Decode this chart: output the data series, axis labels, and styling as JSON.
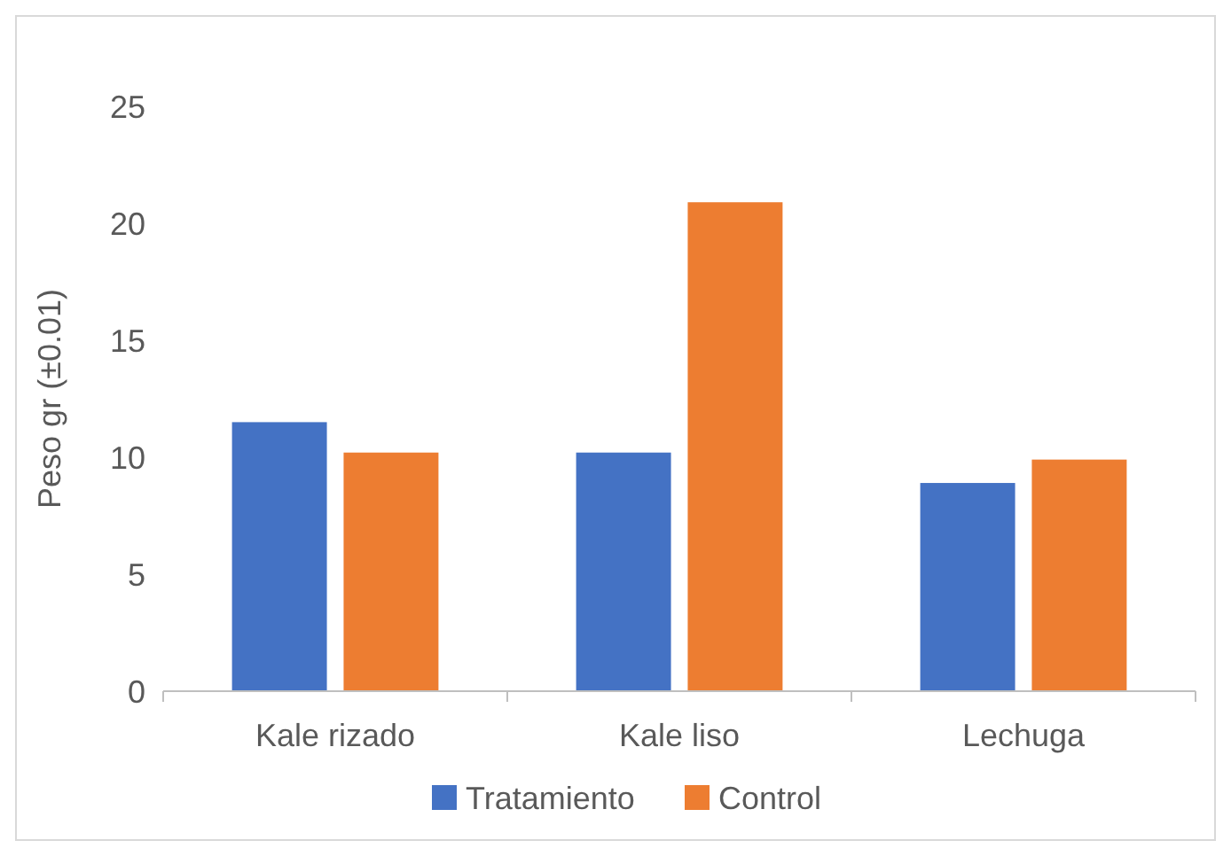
{
  "chart_data": {
    "type": "bar",
    "categories": [
      "Kale rizado",
      "Kale liso",
      "Lechuga"
    ],
    "series": [
      {
        "name": "Tratamiento",
        "color": "#4472c4",
        "values": [
          11.5,
          10.2,
          8.9
        ]
      },
      {
        "name": "Control",
        "color": "#ed7d31",
        "values": [
          10.2,
          20.9,
          9.9
        ]
      }
    ],
    "ylabel": "Peso gr (±0.01)",
    "ylim": [
      0,
      25
    ],
    "yticks": [
      0,
      5,
      10,
      15,
      20,
      25
    ],
    "grid": false,
    "legend": "bottom"
  }
}
